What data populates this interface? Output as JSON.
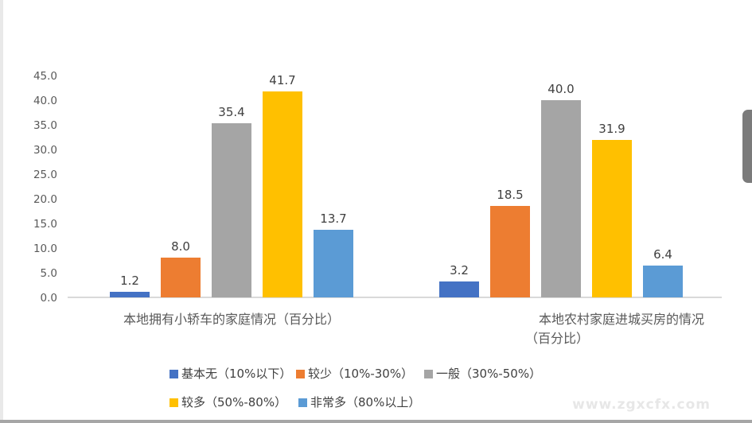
{
  "watermark": {
    "text": "www.zgxcfx.com"
  },
  "chart_data": {
    "type": "bar",
    "title": "",
    "categories": [
      "本地拥有小轿车的家庭情况（百分比）",
      "本地农村家庭进城买房的情况（百分比）"
    ],
    "category_label_lines": [
      [
        "本地拥有小轿车的家庭情况（百分比）"
      ],
      [
        "本地农村家庭进城买房的情况",
        "（百分比）"
      ]
    ],
    "series": [
      {
        "name": "基本无（10%以下）",
        "color": "#4472C4",
        "values": [
          1.2,
          3.2
        ],
        "labels": [
          "1.2",
          "3.2"
        ]
      },
      {
        "name": "较少（10%-30%）",
        "color": "#ED7D31",
        "values": [
          8.0,
          18.5
        ],
        "labels": [
          "8.0",
          "18.5"
        ]
      },
      {
        "name": "一般（30%-50%）",
        "color": "#A5A5A5",
        "values": [
          35.4,
          40.0
        ],
        "labels": [
          "35.4",
          "40.0"
        ]
      },
      {
        "name": "较多（50%-80%）",
        "color": "#FFC000",
        "values": [
          41.7,
          31.9
        ],
        "labels": [
          "41.7",
          "31.9"
        ]
      },
      {
        "name": "非常多（80%以上）",
        "color": "#5B9BD5",
        "values": [
          13.7,
          6.4
        ],
        "labels": [
          "13.7",
          "6.4"
        ]
      }
    ],
    "value_axis": {
      "min": 0,
      "max": 45,
      "step": 5,
      "tick_labels": [
        "0.0",
        "5.0",
        "10.0",
        "15.0",
        "20.0",
        "25.0",
        "30.0",
        "35.0",
        "40.0",
        "45.0"
      ]
    },
    "ylim": [
      0,
      45
    ],
    "grid": false,
    "data_labels": true,
    "legend_position": "bottom",
    "legend_rows": [
      [
        0,
        1,
        2
      ],
      [
        3,
        4
      ]
    ],
    "colors": {
      "axis_line": "#D9D9D9",
      "tick_label": "#595959",
      "data_label": "#404040",
      "category_label": "#595959",
      "legend_text": "#404040"
    }
  }
}
